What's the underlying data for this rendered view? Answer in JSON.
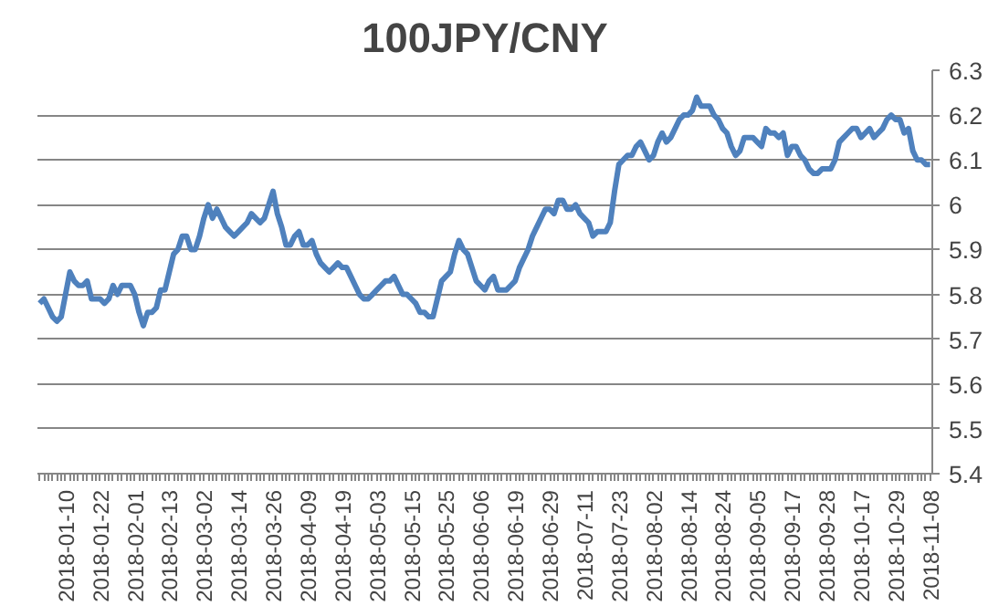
{
  "chart_data": {
    "type": "line",
    "title": "100JPY/CNY",
    "categories": [
      null,
      null,
      null,
      null,
      null,
      null,
      "2018-01-10",
      null,
      null,
      null,
      null,
      null,
      null,
      null,
      "2018-01-22",
      null,
      null,
      null,
      null,
      null,
      null,
      null,
      "2018-02-01",
      null,
      null,
      null,
      null,
      null,
      null,
      null,
      "2018-02-13",
      null,
      null,
      null,
      null,
      null,
      null,
      null,
      "2018-03-02",
      null,
      null,
      null,
      null,
      null,
      null,
      null,
      "2018-03-14",
      null,
      null,
      null,
      null,
      null,
      null,
      null,
      "2018-03-26",
      null,
      null,
      null,
      null,
      null,
      null,
      null,
      "2018-04-09",
      null,
      null,
      null,
      null,
      null,
      null,
      null,
      "2018-04-19",
      null,
      null,
      null,
      null,
      null,
      null,
      null,
      "2018-05-03",
      null,
      null,
      null,
      null,
      null,
      null,
      null,
      "2018-05-15",
      null,
      null,
      null,
      null,
      null,
      null,
      null,
      "2018-05-25",
      null,
      null,
      null,
      null,
      null,
      null,
      null,
      "2018-06-06",
      null,
      null,
      null,
      null,
      null,
      null,
      null,
      "2018-06-19",
      null,
      null,
      null,
      null,
      null,
      null,
      null,
      "2018-06-29",
      null,
      null,
      null,
      null,
      null,
      null,
      null,
      "2018-07-11",
      null,
      null,
      null,
      null,
      null,
      null,
      null,
      "2018-07-23",
      null,
      null,
      null,
      null,
      null,
      null,
      null,
      "2018-08-02",
      null,
      null,
      null,
      null,
      null,
      null,
      null,
      "2018-08-14",
      null,
      null,
      null,
      null,
      null,
      null,
      null,
      "2018-08-24",
      null,
      null,
      null,
      null,
      null,
      null,
      null,
      "2018-09-05",
      null,
      null,
      null,
      null,
      null,
      null,
      null,
      "2018-09-17",
      null,
      null,
      null,
      null,
      null,
      null,
      null,
      "2018-09-28",
      null,
      null,
      null,
      null,
      null,
      null,
      null,
      "2018-10-17",
      null,
      null,
      null,
      null,
      null,
      null,
      null,
      "2018-10-29",
      null,
      null,
      null,
      null,
      null,
      null,
      null,
      "2018-11-08"
    ],
    "series": [
      {
        "color": "#4f81bd",
        "values": [
          5.78,
          5.79,
          5.77,
          5.75,
          5.74,
          5.75,
          5.8,
          5.85,
          5.83,
          5.82,
          5.82,
          5.83,
          5.79,
          5.79,
          5.79,
          5.78,
          5.79,
          5.82,
          5.8,
          5.82,
          5.82,
          5.82,
          5.8,
          5.76,
          5.73,
          5.76,
          5.76,
          5.77,
          5.81,
          5.81,
          5.85,
          5.89,
          5.9,
          5.93,
          5.93,
          5.9,
          5.9,
          5.93,
          5.97,
          6.0,
          5.97,
          5.99,
          5.97,
          5.95,
          5.94,
          5.93,
          5.94,
          5.95,
          5.96,
          5.98,
          5.97,
          5.96,
          5.97,
          6.0,
          6.03,
          5.98,
          5.95,
          5.91,
          5.91,
          5.93,
          5.94,
          5.91,
          5.91,
          5.92,
          5.89,
          5.87,
          5.86,
          5.85,
          5.86,
          5.87,
          5.86,
          5.86,
          5.84,
          5.82,
          5.8,
          5.79,
          5.79,
          5.8,
          5.81,
          5.82,
          5.83,
          5.83,
          5.84,
          5.82,
          5.8,
          5.8,
          5.79,
          5.78,
          5.76,
          5.76,
          5.75,
          5.75,
          5.79,
          5.83,
          5.84,
          5.85,
          5.89,
          5.92,
          5.9,
          5.89,
          5.86,
          5.83,
          5.82,
          5.81,
          5.83,
          5.84,
          5.81,
          5.81,
          5.81,
          5.82,
          5.83,
          5.86,
          5.88,
          5.9,
          5.93,
          5.95,
          5.97,
          5.99,
          5.99,
          5.98,
          6.01,
          6.01,
          5.99,
          5.99,
          6.0,
          5.98,
          5.97,
          5.96,
          5.93,
          5.94,
          5.94,
          5.94,
          5.96,
          6.03,
          6.09,
          6.1,
          6.11,
          6.11,
          6.13,
          6.14,
          6.12,
          6.1,
          6.11,
          6.14,
          6.16,
          6.14,
          6.15,
          6.17,
          6.19,
          6.2,
          6.2,
          6.21,
          6.24,
          6.22,
          6.22,
          6.22,
          6.2,
          6.19,
          6.17,
          6.16,
          6.13,
          6.11,
          6.12,
          6.15,
          6.15,
          6.15,
          6.14,
          6.13,
          6.17,
          6.16,
          6.16,
          6.15,
          6.16,
          6.11,
          6.13,
          6.13,
          6.11,
          6.1,
          6.08,
          6.07,
          6.07,
          6.08,
          6.08,
          6.08,
          6.1,
          6.14,
          6.15,
          6.16,
          6.17,
          6.17,
          6.15,
          6.16,
          6.17,
          6.15,
          6.16,
          6.17,
          6.19,
          6.2,
          6.19,
          6.19,
          6.16,
          6.17,
          6.12,
          6.1,
          6.1,
          6.09,
          6.09
        ]
      }
    ],
    "ylim": [
      5.4,
      6.3
    ],
    "yticks": [
      5.4,
      5.5,
      5.6,
      5.7,
      5.8,
      5.9,
      6,
      6.1,
      6.2,
      6.3
    ],
    "grid": "y"
  }
}
